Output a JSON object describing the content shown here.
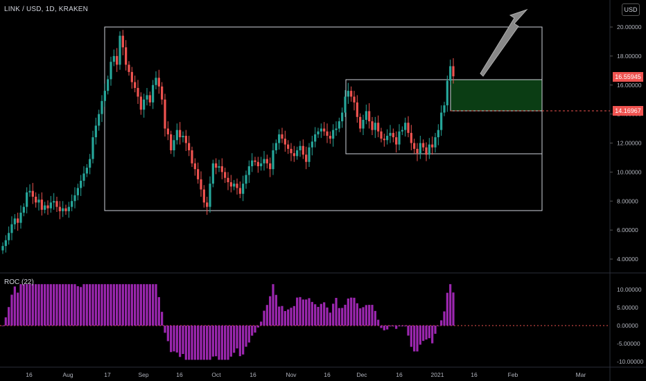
{
  "header": {
    "symbol": "LINK / USD, 1D, KRAKEN",
    "currency_button": "USD"
  },
  "indicator": {
    "label": "ROC (22)"
  },
  "price_axis": {
    "ticks": [
      "20.00000",
      "18.00000",
      "16.00000",
      "14.00000",
      "12.00000",
      "10.00000",
      "8.00000",
      "6.00000",
      "4.00000"
    ]
  },
  "roc_axis": {
    "ticks": [
      "10.00000",
      "5.00000",
      "0.00000",
      "-5.00000",
      "-10.00000"
    ]
  },
  "time_axis": {
    "labels": [
      "16",
      "Aug",
      "17",
      "Sep",
      "16",
      "Oct",
      "16",
      "Nov",
      "16",
      "Dec",
      "16",
      "2021",
      "16",
      "Feb",
      "Mar"
    ]
  },
  "price_labels": {
    "last": "16.55945",
    "level": "14.16967"
  },
  "colors": {
    "up": "#26a69a",
    "down": "#ef5350",
    "roc": "#9c27b0",
    "green_box": "#0b3d14",
    "box_border": "#d1d4dc",
    "last_price": "#ef5350"
  },
  "drawings": {
    "range_rect": {
      "price_top": 20.0,
      "price_bottom": 7.4,
      "date_start": "2020-08-16",
      "date_end": "2021-02-27"
    },
    "consolidation_rect": {
      "price_top": 16.4,
      "price_bottom": 11.3,
      "date_start": "2020-11-22",
      "date_end": "2021-02-27"
    },
    "target_zone": {
      "price_top": 16.4,
      "price_bottom": 14.17,
      "date_start": "2021-01-06",
      "date_end": "2021-02-27"
    },
    "arrow": "up-right-arrow"
  }
}
